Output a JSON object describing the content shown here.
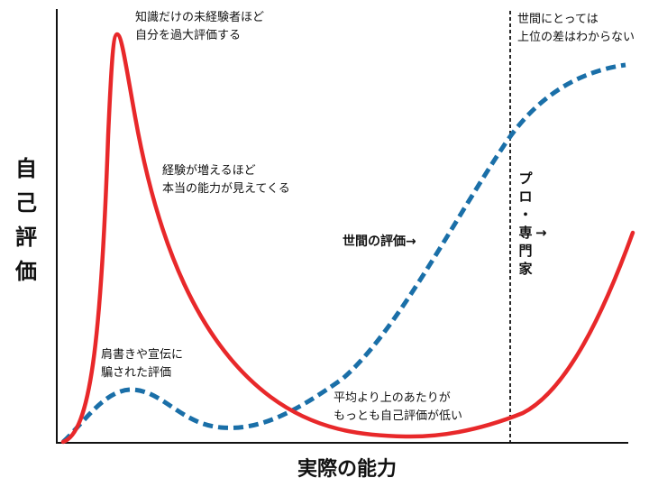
{
  "axes": {
    "y_label": "自己評価",
    "x_label": "実際の能力"
  },
  "curves": {
    "self_eval": {
      "color": "#e8282a",
      "style": "solid"
    },
    "public_eval": {
      "color": "#1a6fa8",
      "style": "dashed"
    }
  },
  "annotations": {
    "peak": [
      "知識だけの未経験者ほど",
      "自分を過大評価する"
    ],
    "experience": [
      "経験が増えるほど",
      "本当の能力が見えてくる"
    ],
    "credentials": [
      "肩書きや宣伝に",
      "騙された評価"
    ],
    "public_eval": "世間の評価→",
    "above_average": [
      "平均より上のあたりが",
      "もっとも自己評価が低い"
    ],
    "public_top": [
      "世間にとっては",
      "上位の差はわからない"
    ],
    "pro": [
      "プ",
      "ロ",
      "・",
      "専",
      "門",
      "家"
    ],
    "pro_arrow": "→"
  }
}
